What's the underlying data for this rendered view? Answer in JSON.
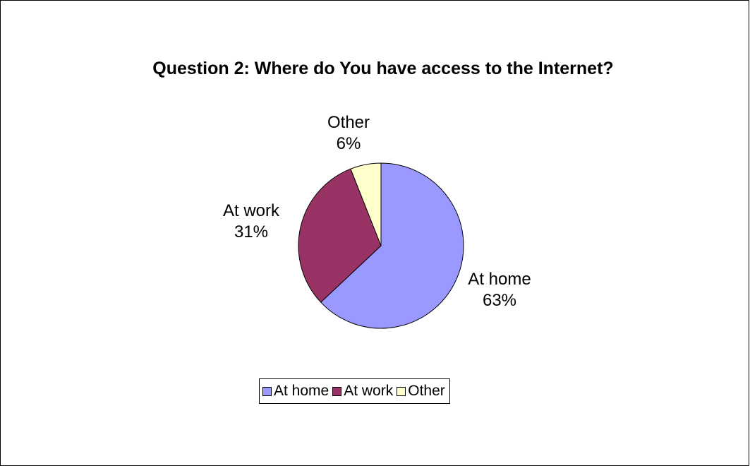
{
  "chart_data": {
    "type": "pie",
    "title": "Question 2: Where do You have access to the Internet?",
    "categories": [
      "At home",
      "At work",
      "Other"
    ],
    "values": [
      63,
      31,
      6
    ],
    "value_format": "percent",
    "colors": [
      "#9999FF",
      "#993366",
      "#FFFFCC"
    ],
    "slice_labels": [
      {
        "category": "At home",
        "value": "63%"
      },
      {
        "category": "At work",
        "value": "31%"
      },
      {
        "category": "Other",
        "value": "6%"
      }
    ],
    "legend": {
      "placement": "bottom",
      "entries": [
        "At home",
        "At work",
        "Other"
      ]
    }
  }
}
